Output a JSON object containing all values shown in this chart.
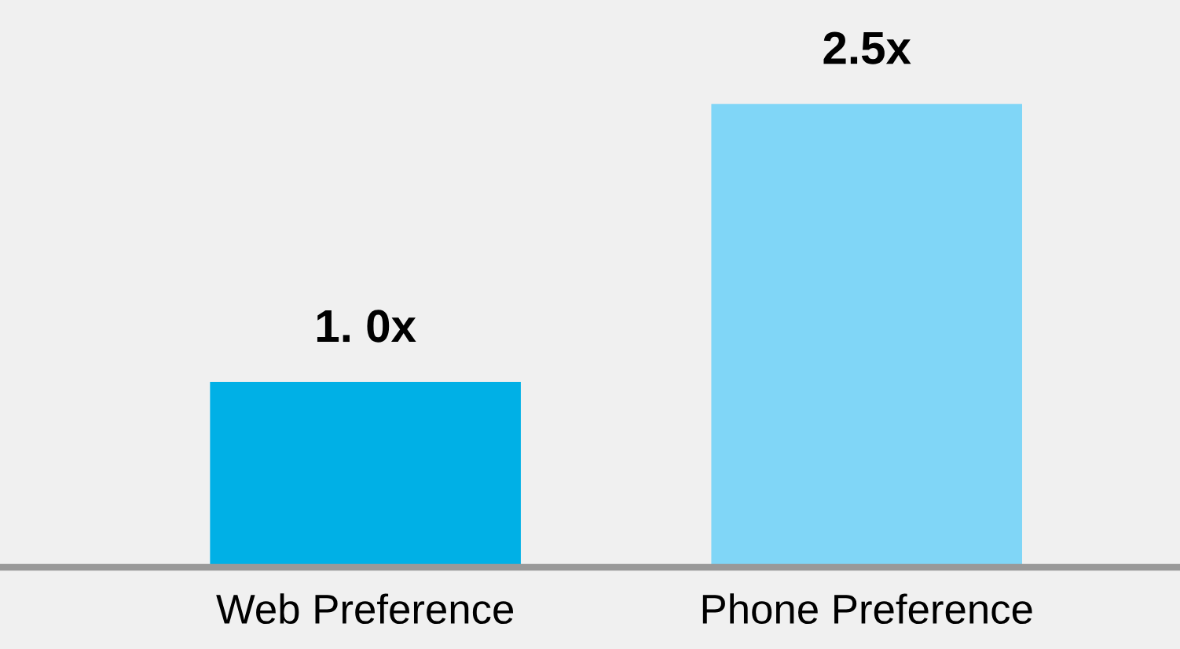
{
  "chart_data": {
    "type": "bar",
    "categories": [
      "Web Preference",
      "Phone Preference"
    ],
    "values": [
      1.0,
      2.5
    ],
    "colors": [
      "#00b0e6",
      "#80d6f7"
    ],
    "value_labels": [
      "1. 0x",
      "2.5x"
    ],
    "ylim": [
      0,
      3.06
    ],
    "grid": false,
    "legend": false
  }
}
